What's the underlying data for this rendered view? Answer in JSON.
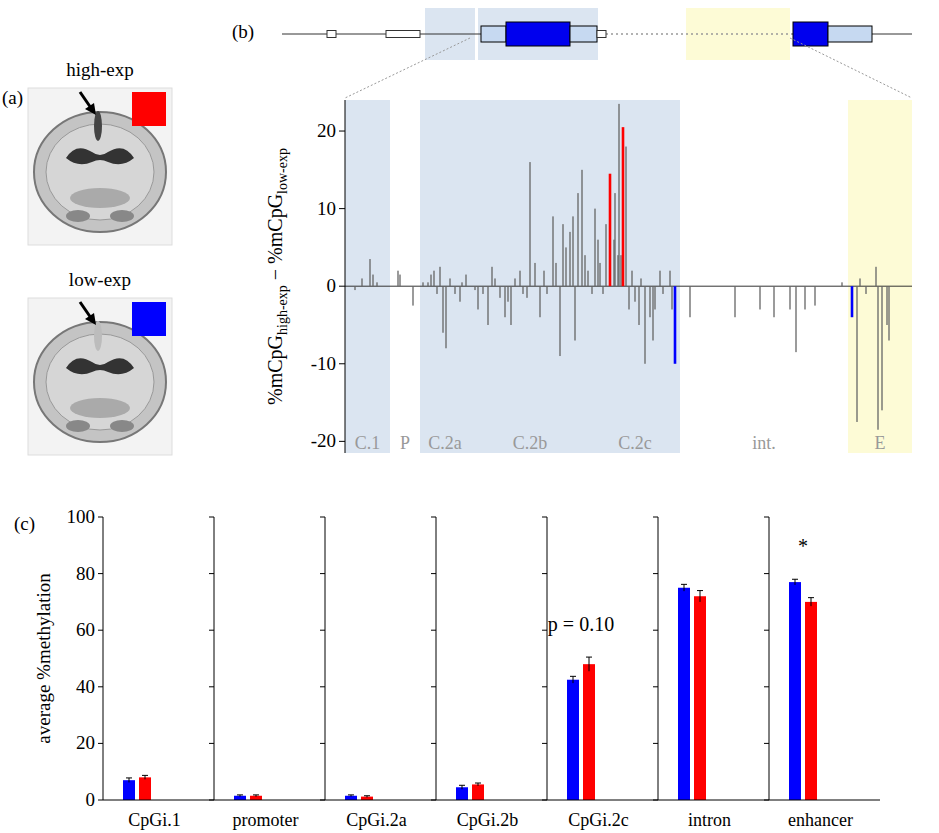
{
  "panel_a": {
    "panel_label": "(a)",
    "images": [
      {
        "label": "high-exp",
        "color": "#ff0000"
      },
      {
        "label": "low-exp",
        "color": "#0000ff"
      }
    ]
  },
  "chart_data": [
    {
      "type": "bar",
      "panel_label": "(b)",
      "y_label": [
        {
          "text": "%mCpG"
        },
        {
          "text": "high-exp",
          "sub": true
        },
        {
          "text": " − %mCpG"
        },
        {
          "text": "low-exp",
          "sub": true
        }
      ],
      "x": [
        10,
        17,
        25,
        28,
        32,
        53,
        55,
        68,
        78,
        83,
        86,
        89,
        92,
        95,
        98,
        101,
        105,
        110,
        115,
        117,
        121,
        130,
        133,
        138,
        143,
        147,
        150,
        155,
        160,
        163,
        166,
        170,
        175,
        178,
        182,
        185,
        190,
        195,
        199,
        202,
        208,
        211,
        215,
        218,
        221,
        225,
        228,
        230,
        233,
        237,
        240,
        243,
        247,
        250,
        253,
        255,
        258,
        261,
        265,
        269,
        270,
        273,
        274,
        276,
        278,
        281,
        284,
        287,
        290,
        294,
        296,
        300,
        305,
        308,
        310,
        315,
        318,
        325,
        327,
        330,
        345,
        390,
        415,
        429,
        445,
        451,
        460,
        470,
        497,
        507,
        512,
        515,
        521,
        531,
        533,
        537,
        542,
        544
      ],
      "values": [
        -0.5,
        1,
        3.5,
        1.5,
        0.5,
        2,
        1.5,
        -2.5,
        0.5,
        0.5,
        1.5,
        2,
        -1,
        2.5,
        -6,
        -8,
        1,
        -1,
        -2,
        0.5,
        1.5,
        -0.5,
        -3,
        -1,
        -5,
        2.5,
        1,
        -1.5,
        -4,
        -2,
        -5,
        1,
        2,
        -1,
        -1.5,
        16,
        3,
        -4,
        2,
        -1,
        9,
        3,
        -9,
        8,
        5,
        7,
        9,
        -7,
        12,
        15,
        4,
        2,
        -1,
        10,
        6,
        3,
        -1,
        8,
        14.5,
        6,
        12,
        4,
        23.5,
        4,
        20.5,
        18,
        -3,
        2,
        -2,
        -5,
        1,
        -10,
        -4,
        -7,
        -3,
        2,
        -1,
        2,
        -3,
        -10,
        -4,
        -4,
        -3,
        -4,
        -3,
        -8.5,
        -3,
        -2.5,
        0.5,
        -4,
        -17.5,
        1,
        -1,
        2.5,
        -18.5,
        -16,
        -5,
        -7
      ],
      "colors": [
        "#666666",
        "#666666",
        "#666666",
        "#666666",
        "#666666",
        "#666666",
        "#666666",
        "#666666",
        "#666666",
        "#666666",
        "#666666",
        "#666666",
        "#666666",
        "#666666",
        "#666666",
        "#666666",
        "#666666",
        "#666666",
        "#666666",
        "#666666",
        "#666666",
        "#666666",
        "#666666",
        "#666666",
        "#666666",
        "#666666",
        "#666666",
        "#666666",
        "#666666",
        "#666666",
        "#666666",
        "#666666",
        "#666666",
        "#666666",
        "#666666",
        "#666666",
        "#666666",
        "#666666",
        "#666666",
        "#666666",
        "#666666",
        "#666666",
        "#666666",
        "#666666",
        "#666666",
        "#666666",
        "#666666",
        "#666666",
        "#666666",
        "#666666",
        "#666666",
        "#666666",
        "#666666",
        "#666666",
        "#666666",
        "#666666",
        "#666666",
        "#666666",
        "#ff0000",
        "#666666",
        "#666666",
        "#666666",
        "#666666",
        "#666666",
        "#ff0000",
        "#666666",
        "#666666",
        "#666666",
        "#666666",
        "#666666",
        "#666666",
        "#666666",
        "#666666",
        "#666666",
        "#666666",
        "#666666",
        "#666666",
        "#666666",
        "#666666",
        "#0000ff",
        "#666666",
        "#666666",
        "#666666",
        "#666666",
        "#666666",
        "#666666",
        "#666666",
        "#666666",
        "#666666",
        "#0000ff",
        "#666666",
        "#666666",
        "#666666",
        "#666666",
        "#666666",
        "#666666",
        "#666666",
        "#666666"
      ],
      "xlim": [
        0,
        567
      ],
      "ylim": [
        -21.5,
        24
      ],
      "yticks": [
        -20,
        -10,
        0,
        10,
        20
      ],
      "tick_labels": "y",
      "regions": [
        {
          "label": "C.1",
          "start": 0,
          "end": 45,
          "color": "#dbe5f1"
        },
        {
          "label": "P",
          "start": 45,
          "end": 75
        },
        {
          "label": "C.2a",
          "start": 75,
          "end": 125,
          "color": "#dbe5f1"
        },
        {
          "label": "C.2b",
          "start": 125,
          "end": 245,
          "color": "#dbe5f1"
        },
        {
          "label": "C.2c",
          "start": 245,
          "end": 335,
          "color": "#dbe5f1"
        },
        {
          "label": "int.",
          "start": 335,
          "end": 503
        },
        {
          "label": "E",
          "start": 503,
          "end": 567,
          "color": "#fdfbd6"
        }
      ]
    },
    {
      "type": "bar",
      "panel_label": "(c)",
      "y_label": "average %methylation",
      "categories": [
        "CpGi.1",
        "promoter",
        "CpGi.2a",
        "CpGi.2b",
        "CpGi.2c",
        "intron",
        "enhancer"
      ],
      "series": [
        {
          "color": "#0000ff",
          "values": [
            7,
            1.5,
            1.5,
            4.5,
            42.5,
            75,
            77
          ],
          "errors": [
            0.8,
            0.3,
            0.3,
            0.7,
            1.2,
            1.2,
            1.0
          ]
        },
        {
          "color": "#ff0000",
          "values": [
            8,
            1.5,
            1.2,
            5.5,
            48,
            72,
            70
          ],
          "errors": [
            0.7,
            0.3,
            0.3,
            0.5,
            2.5,
            2,
            1.5
          ]
        }
      ],
      "ylim": [
        0,
        100
      ],
      "yticks": [
        0,
        20,
        40,
        60,
        80,
        100
      ],
      "annotations": [
        {
          "text": "p = 0.10",
          "category": "CpGi.2c"
        },
        {
          "text": "*",
          "category": "enhancer"
        }
      ]
    }
  ]
}
